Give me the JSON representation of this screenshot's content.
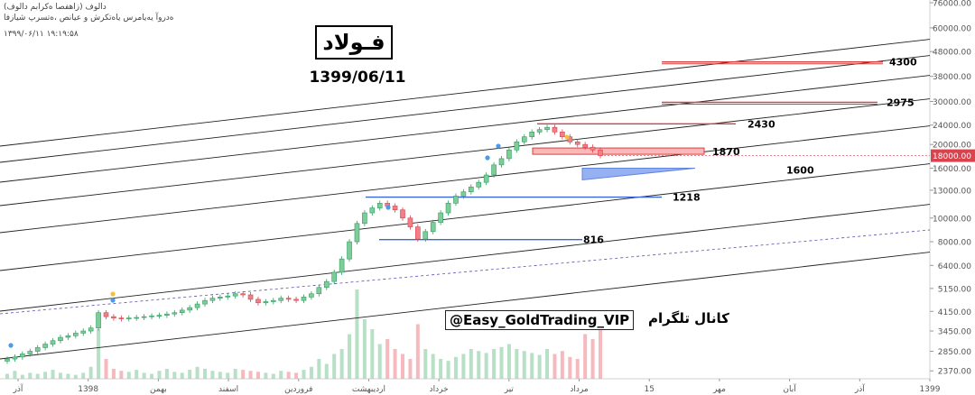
{
  "header": {
    "line1": "(زاهفصا ەکرابم دالوف) دالوف",
    "line2": "ەدروآ یەیامرس یاەتکرش و عیانص ،ەتسرپ شیازفا",
    "timestamp": "۱۳۹۹/۰۶/۱۱  ۱۹:۱۹:۵۸"
  },
  "annotations": {
    "symbol_title": "فـولاد",
    "date": "1399/06/11",
    "channel_handle": "@Easy_GoldTrading_VIP",
    "channel_label": "کانال تلگرام"
  },
  "chart_data": {
    "type": "candlestick",
    "y_scale": "log",
    "ylim": [
      2200,
      78000
    ],
    "y_ticks": [
      "76000.00",
      "60000.00",
      "48000.00",
      "38000.00",
      "30000.00",
      "24000.00",
      "20000.00",
      "16000.00",
      "13000.00",
      "10000.00",
      "8000.00",
      "6400.00",
      "5150.00",
      "4150.00",
      "3450.00",
      "2850.00",
      "2370.00"
    ],
    "x_ticks": [
      "آذر",
      "1398",
      "بهمن",
      "اسفند",
      "فروردین",
      "اردیبهشت",
      "خرداد",
      "تیر",
      "مرداد",
      "15",
      "مهر",
      "آبان",
      "آذر",
      "1399"
    ],
    "last_price": "18000.00",
    "price_levels": [
      {
        "label": "4300",
        "value": 43500
      },
      {
        "label": "2975",
        "value": 29750
      },
      {
        "label": "2430",
        "value": 24300
      },
      {
        "label": "1870",
        "value": 18700
      },
      {
        "label": "1600",
        "value": 16000
      },
      {
        "label": "1218",
        "value": 12180
      },
      {
        "label": "816",
        "value": 8160
      }
    ],
    "series": [
      {
        "name": "price",
        "values": [
          2650,
          2700,
          2780,
          2850,
          2950,
          3050,
          3150,
          3250,
          3300,
          3380,
          3450,
          3550,
          4100,
          3950,
          3900,
          3870,
          3900,
          3920,
          3950,
          3980,
          4000,
          4050,
          4100,
          4200,
          4300,
          4450,
          4600,
          4700,
          4750,
          4800,
          4900,
          4850,
          4650,
          4500,
          4550,
          4600,
          4700,
          4650,
          4600,
          4750,
          4900,
          5200,
          5500,
          6000,
          6800,
          8000,
          9500,
          10500,
          11000,
          11500,
          11200,
          10800,
          10000,
          9200,
          8200,
          8800,
          9600,
          10500,
          11500,
          12300,
          12800,
          13400,
          14000,
          15000,
          16500,
          17500,
          19000,
          20500,
          21500,
          22500,
          23000,
          23500,
          22500,
          21500,
          20500,
          20000,
          19500,
          19000,
          18000
        ]
      },
      {
        "name": "volume",
        "values": [
          0.05,
          0.08,
          0.04,
          0.06,
          0.05,
          0.07,
          0.09,
          0.06,
          0.05,
          0.04,
          0.06,
          0.12,
          0.5,
          0.2,
          0.1,
          0.08,
          0.07,
          0.09,
          0.06,
          0.05,
          0.08,
          0.1,
          0.07,
          0.06,
          0.09,
          0.12,
          0.1,
          0.08,
          0.07,
          0.06,
          0.1,
          0.09,
          0.08,
          0.07,
          0.06,
          0.05,
          0.08,
          0.07,
          0.06,
          0.09,
          0.12,
          0.2,
          0.15,
          0.25,
          0.3,
          0.45,
          0.9,
          0.6,
          0.5,
          0.35,
          0.4,
          0.3,
          0.25,
          0.2,
          0.55,
          0.3,
          0.25,
          0.2,
          0.18,
          0.22,
          0.25,
          0.3,
          0.28,
          0.26,
          0.3,
          0.32,
          0.35,
          0.3,
          0.28,
          0.26,
          0.24,
          0.3,
          0.25,
          0.28,
          0.22,
          0.2,
          0.45,
          0.4,
          0.55
        ]
      }
    ]
  }
}
